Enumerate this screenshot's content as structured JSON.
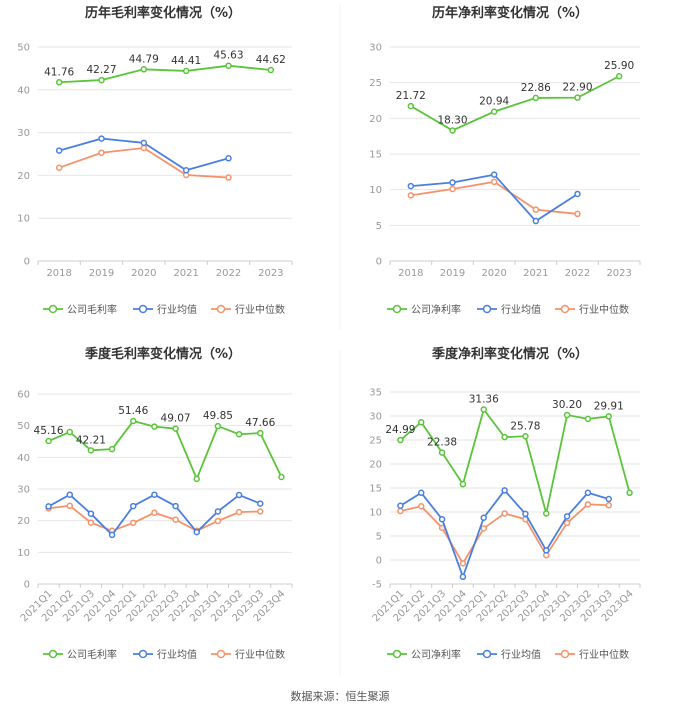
{
  "footer": {
    "source": "数据来源：恒生聚源"
  },
  "colors": {
    "company": "#5ac43a",
    "avg": "#4a7fe0",
    "median": "#f5926a",
    "axis": "#999999",
    "grid": "#e6e6e6",
    "label": "#333333"
  },
  "chart_data": [
    {
      "type": "line",
      "title": "历年毛利率变化情况（%）",
      "categories": [
        "2018",
        "2019",
        "2020",
        "2021",
        "2022",
        "2023"
      ],
      "ylim": [
        0,
        50
      ],
      "yticks": [
        0,
        10,
        20,
        30,
        40,
        50
      ],
      "series": [
        {
          "name": "公司毛利率",
          "role": "company",
          "values": [
            41.76,
            42.27,
            44.79,
            44.41,
            45.63,
            44.62
          ],
          "labels": [
            true,
            true,
            true,
            true,
            true,
            true
          ]
        },
        {
          "name": "行业均值",
          "role": "avg",
          "values": [
            25.8,
            28.6,
            27.6,
            21.2,
            24.0,
            null
          ],
          "labels": []
        },
        {
          "name": "行业中位数",
          "role": "median",
          "values": [
            21.8,
            25.3,
            26.4,
            20.1,
            19.5,
            null
          ],
          "labels": []
        }
      ],
      "data_labels": [
        "41.76",
        "42.27",
        "44.79",
        "44.41",
        "45.63",
        "44.62"
      ]
    },
    {
      "type": "line",
      "title": "历年净利率变化情况（%）",
      "categories": [
        "2018",
        "2019",
        "2020",
        "2021",
        "2022",
        "2023"
      ],
      "ylim": [
        0,
        30
      ],
      "yticks": [
        0,
        5,
        10,
        15,
        20,
        25,
        30
      ],
      "series": [
        {
          "name": "公司净利率",
          "role": "company",
          "values": [
            21.72,
            18.3,
            20.94,
            22.86,
            22.9,
            25.9
          ],
          "labels": [
            true,
            true,
            true,
            true,
            true,
            true
          ]
        },
        {
          "name": "行业均值",
          "role": "avg",
          "values": [
            10.5,
            11.0,
            12.1,
            5.6,
            9.4,
            null
          ],
          "labels": []
        },
        {
          "name": "行业中位数",
          "role": "median",
          "values": [
            9.2,
            10.1,
            11.1,
            7.2,
            6.6,
            null
          ],
          "labels": []
        }
      ],
      "data_labels": [
        "21.72",
        "18.30",
        "20.94",
        "22.86",
        "22.90",
        "25.90"
      ]
    },
    {
      "type": "line",
      "title": "季度毛利率变化情况（%）",
      "categories": [
        "2021Q1",
        "2021Q2",
        "2021Q3",
        "2021Q4",
        "2022Q1",
        "2022Q2",
        "2022Q3",
        "2022Q4",
        "2023Q1",
        "2023Q2",
        "2023Q3",
        "2023Q4"
      ],
      "ylim": [
        0,
        60
      ],
      "yticks": [
        0,
        10,
        20,
        30,
        40,
        50,
        60
      ],
      "series": [
        {
          "name": "公司毛利率",
          "role": "company",
          "values": [
            45.16,
            48.0,
            42.21,
            42.6,
            51.46,
            49.7,
            49.07,
            33.2,
            49.85,
            47.3,
            47.66,
            33.8
          ],
          "labels": [
            true,
            false,
            true,
            false,
            true,
            false,
            true,
            false,
            true,
            false,
            true,
            false
          ]
        },
        {
          "name": "行业均值",
          "role": "avg",
          "values": [
            24.5,
            28.2,
            22.2,
            15.5,
            24.6,
            28.2,
            24.6,
            16.4,
            22.9,
            28.1,
            25.4,
            null
          ],
          "labels": []
        },
        {
          "name": "行业中位数",
          "role": "median",
          "values": [
            23.9,
            24.7,
            19.4,
            16.8,
            19.3,
            22.5,
            20.3,
            16.8,
            19.9,
            22.7,
            22.9,
            null
          ],
          "labels": []
        }
      ],
      "data_labels": [
        "45.16",
        "42.21",
        "51.46",
        "49.07",
        "49.85",
        "47.66"
      ]
    },
    {
      "type": "line",
      "title": "季度净利率变化情况（%）",
      "categories": [
        "2021Q1",
        "2021Q2",
        "2021Q3",
        "2021Q4",
        "2022Q1",
        "2022Q2",
        "2022Q3",
        "2022Q4",
        "2023Q1",
        "2023Q2",
        "2023Q3",
        "2023Q4"
      ],
      "ylim": [
        -5,
        35
      ],
      "yticks": [
        -5,
        0,
        5,
        10,
        15,
        20,
        25,
        30,
        35
      ],
      "series": [
        {
          "name": "公司净利率",
          "role": "company",
          "values": [
            24.99,
            28.7,
            22.38,
            15.8,
            31.36,
            25.6,
            25.78,
            9.7,
            30.2,
            29.4,
            29.91,
            14.0
          ],
          "labels": [
            true,
            false,
            true,
            false,
            true,
            false,
            true,
            false,
            true,
            false,
            true,
            false
          ]
        },
        {
          "name": "行业均值",
          "role": "avg",
          "values": [
            11.3,
            14.0,
            8.5,
            -3.5,
            8.8,
            14.5,
            9.6,
            2.0,
            9.1,
            14.0,
            12.7,
            null
          ],
          "labels": []
        },
        {
          "name": "行业中位数",
          "role": "median",
          "values": [
            10.2,
            11.2,
            6.7,
            -0.7,
            6.6,
            9.7,
            8.5,
            1.0,
            7.7,
            11.6,
            11.4,
            null
          ],
          "labels": []
        }
      ],
      "data_labels": [
        "24.99",
        "22.38",
        "31.36",
        "25.78",
        "30.20",
        "29.91"
      ]
    }
  ]
}
